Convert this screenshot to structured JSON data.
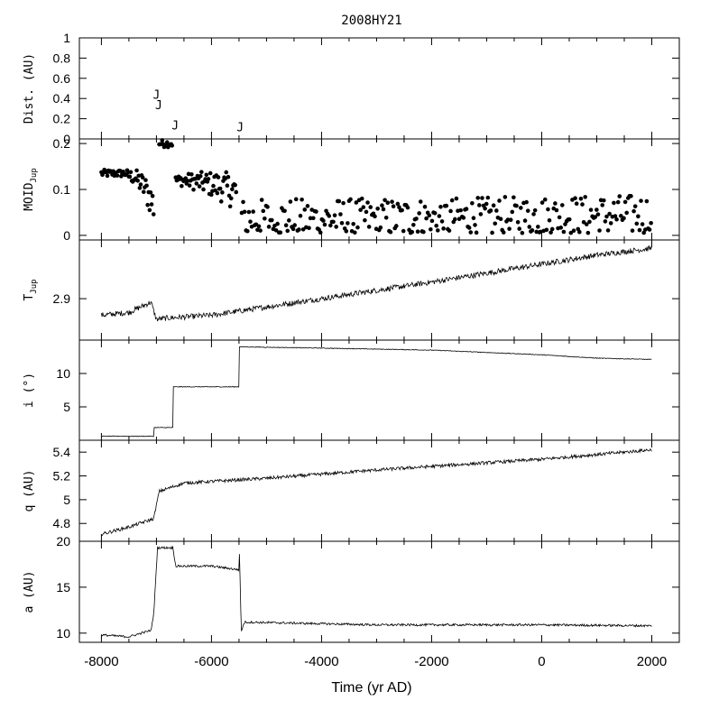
{
  "chart_data": {
    "type": "line",
    "title": "2008HY21",
    "xlabel": "Time (yr AD)",
    "xlim": [
      -8400,
      2500
    ],
    "x_ticks": [
      -8000,
      -6000,
      -4000,
      -2000,
      0,
      2000
    ],
    "x_tick_labels": [
      "-8000",
      "-6000",
      "-4000",
      "-2000",
      "0",
      "2000"
    ],
    "panels": [
      {
        "id": "dist",
        "ylabel": "Dist. (AU)",
        "ylim": [
          0,
          1
        ],
        "y_ticks": [
          0,
          0.2,
          0.4,
          0.6,
          0.8,
          1
        ],
        "y_tick_labels": [
          "0",
          "0.2",
          "0.4",
          "0.6",
          "0.8",
          "1"
        ],
        "annotations": [
          {
            "text": "J",
            "x": -7000,
            "y": 0.44
          },
          {
            "text": "J",
            "x": -6960,
            "y": 0.34
          },
          {
            "text": "J",
            "x": -6660,
            "y": 0.14
          },
          {
            "text": "J",
            "x": -5480,
            "y": 0.12
          }
        ]
      },
      {
        "id": "moid",
        "ylabel": "MOID",
        "ylabel_sub": "Jup",
        "type": "scatter",
        "ylim": [
          -0.01,
          0.21
        ],
        "y_ticks": [
          0,
          0.1,
          0.2
        ],
        "y_tick_labels": [
          "0",
          "0.1",
          "0.2"
        ],
        "segments": [
          {
            "x": [
              -8000,
              -7520
            ],
            "base": 0.135
          },
          {
            "x": [
              -7520,
              -7050
            ],
            "base": 0.13,
            "end": 0.065
          },
          {
            "x": [
              -6950,
              -6700
            ],
            "base": 0.2
          },
          {
            "x": [
              -6650,
              -5550
            ],
            "base": 0.12,
            "end": 0.095
          },
          {
            "x": [
              -5450,
              2000
            ],
            "base": 0.035,
            "end": 0.045
          }
        ]
      },
      {
        "id": "tjup",
        "ylabel": "T",
        "ylabel_sub": "Jup",
        "ylim": [
          2.84,
          2.985
        ],
        "y_ticks": [
          2.9
        ],
        "y_tick_labels": [
          "2.9"
        ],
        "points": [
          [
            -8000,
            2.876
          ],
          [
            -7500,
            2.88
          ],
          [
            -7100,
            2.895
          ],
          [
            -7000,
            2.87
          ],
          [
            -6800,
            2.872
          ],
          [
            -6000,
            2.876
          ],
          [
            -5500,
            2.882
          ],
          [
            -4000,
            2.9
          ],
          [
            -2000,
            2.924
          ],
          [
            0,
            2.95
          ],
          [
            1000,
            2.963
          ],
          [
            2000,
            2.973
          ]
        ]
      },
      {
        "id": "inc",
        "ylabel": "i (°)",
        "ylim": [
          0,
          15
        ],
        "y_ticks": [
          5,
          10
        ],
        "y_tick_labels": [
          "5",
          "10"
        ],
        "points": [
          [
            -8000,
            0.6
          ],
          [
            -7050,
            0.6
          ],
          [
            -7050,
            1.9
          ],
          [
            -6700,
            1.9
          ],
          [
            -6700,
            8.0
          ],
          [
            -5500,
            8.0
          ],
          [
            -5500,
            14.0
          ],
          [
            -4000,
            13.8
          ],
          [
            -2000,
            13.5
          ],
          [
            0,
            12.8
          ],
          [
            1000,
            12.3
          ],
          [
            2000,
            12.1
          ]
        ]
      },
      {
        "id": "q",
        "ylabel": "q (AU)",
        "ylim": [
          4.65,
          5.5
        ],
        "y_ticks": [
          4.8,
          5,
          5.2,
          5.4
        ],
        "y_tick_labels": [
          "4.8",
          "5",
          "5.2",
          "5.4"
        ],
        "points": [
          [
            -8000,
            4.71
          ],
          [
            -7500,
            4.77
          ],
          [
            -7050,
            4.84
          ],
          [
            -6950,
            5.07
          ],
          [
            -6500,
            5.14
          ],
          [
            -5000,
            5.18
          ],
          [
            -3000,
            5.25
          ],
          [
            -1000,
            5.31
          ],
          [
            0,
            5.34
          ],
          [
            1000,
            5.38
          ],
          [
            2000,
            5.42
          ]
        ]
      },
      {
        "id": "a",
        "ylabel": "a (AU)",
        "ylim": [
          9.0,
          20.0
        ],
        "y_ticks": [
          10,
          15,
          20
        ],
        "y_tick_labels": [
          "10",
          "15",
          "20"
        ],
        "points": [
          [
            -8000,
            9.8
          ],
          [
            -7500,
            9.6
          ],
          [
            -7100,
            10.3
          ],
          [
            -7050,
            12.0
          ],
          [
            -6980,
            19.3
          ],
          [
            -6700,
            19.3
          ],
          [
            -6650,
            17.3
          ],
          [
            -6000,
            17.3
          ],
          [
            -5500,
            16.9
          ],
          [
            -5490,
            18.9
          ],
          [
            -5460,
            10.2
          ],
          [
            -5400,
            11.2
          ],
          [
            -3000,
            10.9
          ],
          [
            0,
            10.9
          ],
          [
            2000,
            10.8
          ]
        ]
      }
    ]
  }
}
